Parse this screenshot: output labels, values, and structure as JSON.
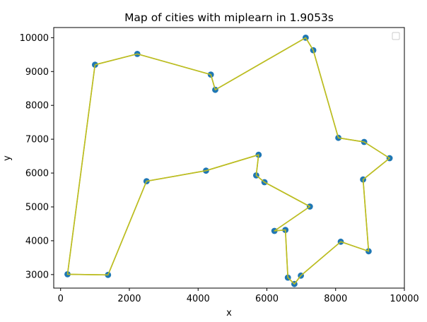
{
  "chart_data": {
    "type": "scatter",
    "title": "Map of cities with miplearn in 1.9053s",
    "xlabel": "x",
    "ylabel": "y",
    "xlim": [
      -200,
      10000
    ],
    "ylim": [
      2600,
      10300
    ],
    "xticks": [
      0,
      2000,
      4000,
      6000,
      8000,
      10000
    ],
    "yticks": [
      3000,
      4000,
      5000,
      6000,
      7000,
      8000,
      9000,
      10000
    ],
    "grid": false,
    "legend": {
      "position": "top-right",
      "entries": []
    },
    "colors": {
      "points": "#1f77b4",
      "route": "#bcbd22",
      "axes": "#000000"
    },
    "series": [
      {
        "kind": "points",
        "x": [
          1000,
          2230,
          4370,
          4500,
          7130,
          7350,
          8080,
          8830,
          9570,
          8800,
          8960,
          8150,
          6990,
          6800,
          6610,
          6540,
          6220,
          7250,
          5930,
          5690,
          5760,
          4230,
          2500,
          1380,
          200
        ],
        "y": [
          9200,
          9520,
          8910,
          8460,
          10000,
          9630,
          7040,
          6920,
          6440,
          5810,
          3690,
          3970,
          2970,
          2720,
          2910,
          4320,
          4290,
          5010,
          5730,
          5930,
          6540,
          6070,
          5760,
          2990,
          3010
        ]
      },
      {
        "kind": "route",
        "x": [
          1000,
          2230,
          4370,
          4500,
          7130,
          7350,
          8080,
          8830,
          9570,
          8800,
          8960,
          8150,
          6990,
          6800,
          6610,
          6540,
          6220,
          7250,
          5930,
          5690,
          5760,
          4230,
          2500,
          1380,
          200,
          1000
        ],
        "y": [
          9200,
          9520,
          8910,
          8460,
          10000,
          9630,
          7040,
          6920,
          6440,
          5810,
          3690,
          3970,
          2970,
          2720,
          2910,
          4320,
          4290,
          5010,
          5730,
          5930,
          6540,
          6070,
          5760,
          2990,
          3010,
          9200
        ]
      }
    ]
  }
}
